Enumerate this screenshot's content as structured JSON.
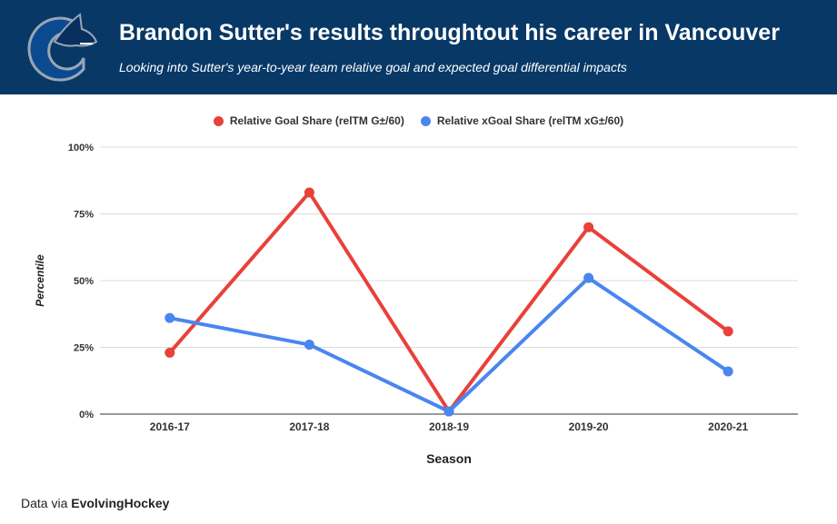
{
  "header": {
    "title": "Brandon Sutter's results throughtout his career in Vancouver",
    "subtitle": "Looking into Sutter's year-to-year team relative goal and expected goal differential impacts",
    "logo": "vancouver-canucks-orca-logo"
  },
  "footer": {
    "prefix": "Data via",
    "source": "EvolvingHockey"
  },
  "colors": {
    "header_bg": "#083866",
    "series_goal": "#E8413A",
    "series_xgoal": "#4A86F0"
  },
  "chart_data": {
    "type": "line",
    "title": "Brandon Sutter's results throughtout his career in Vancouver",
    "xlabel": "Season",
    "ylabel": "Percentile",
    "categories": [
      "2016-17",
      "2017-18",
      "2018-19",
      "2019-20",
      "2020-21"
    ],
    "ylim": [
      0,
      100
    ],
    "yticks": [
      0,
      25,
      50,
      75,
      100
    ],
    "ytick_labels": [
      "0%",
      "25%",
      "50%",
      "75%",
      "100%"
    ],
    "grid": true,
    "legend_position": "top-center",
    "series": [
      {
        "name": "Relative Goal Share (relTM G±/60)",
        "color": "#E8413A",
        "values": [
          23,
          83,
          1,
          70,
          31
        ]
      },
      {
        "name": "Relative xGoal Share (relTM xG±/60)",
        "color": "#4A86F0",
        "values": [
          36,
          26,
          1,
          51,
          16
        ]
      }
    ]
  }
}
